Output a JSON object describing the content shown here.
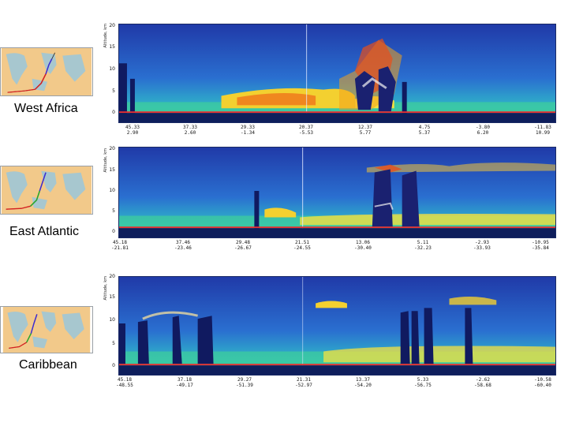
{
  "rows": [
    {
      "label": "West Africa",
      "y_ticks": [
        "20",
        "15",
        "10",
        "5",
        "0"
      ],
      "y_axis_label": "Altitude, km",
      "x_ticks": [
        {
          "lat": "45.33",
          "lon": "2.90"
        },
        {
          "lat": "37.33",
          "lon": "2.60"
        },
        {
          "lat": "29.33",
          "lon": "-1.34"
        },
        {
          "lat": "20.37",
          "lon": "-5.53"
        },
        {
          "lat": "12.37",
          "lon": "5.77"
        },
        {
          "lat": "4.75",
          "lon": "5.37"
        },
        {
          "lat": "-3.80",
          "lon": "6.20"
        },
        {
          "lat": "-11.83",
          "lon": "10.99"
        }
      ]
    },
    {
      "label": "East Atlantic",
      "y_ticks": [
        "20",
        "15",
        "10",
        "5",
        "0"
      ],
      "y_axis_label": "Altitude, km",
      "x_ticks": [
        {
          "lat": "45.18",
          "lon": "-21.81"
        },
        {
          "lat": "37.46",
          "lon": "-23.46"
        },
        {
          "lat": "29.48",
          "lon": "-26.67"
        },
        {
          "lat": "21.51",
          "lon": "-24.55"
        },
        {
          "lat": "13.06",
          "lon": "-30.40"
        },
        {
          "lat": "5.11",
          "lon": "-32.23"
        },
        {
          "lat": "-2.93",
          "lon": "-33.93"
        },
        {
          "lat": "-10.95",
          "lon": "-35.84"
        }
      ]
    },
    {
      "label": "Caribbean",
      "y_ticks": [
        "20",
        "15",
        "10",
        "5",
        "0"
      ],
      "y_axis_label": "Altitude, km",
      "x_ticks": [
        {
          "lat": "45.18",
          "lon": "-48.55"
        },
        {
          "lat": "37.18",
          "lon": "-49.17"
        },
        {
          "lat": "29.27",
          "lon": "-51.39"
        },
        {
          "lat": "21.31",
          "lon": "-52.97"
        },
        {
          "lat": "13.37",
          "lon": "-54.20"
        },
        {
          "lat": "5.33",
          "lon": "-56.75"
        },
        {
          "lat": "-2.62",
          "lon": "-58.68"
        },
        {
          "lat": "-10.58",
          "lon": "-60.40"
        }
      ]
    }
  ]
}
